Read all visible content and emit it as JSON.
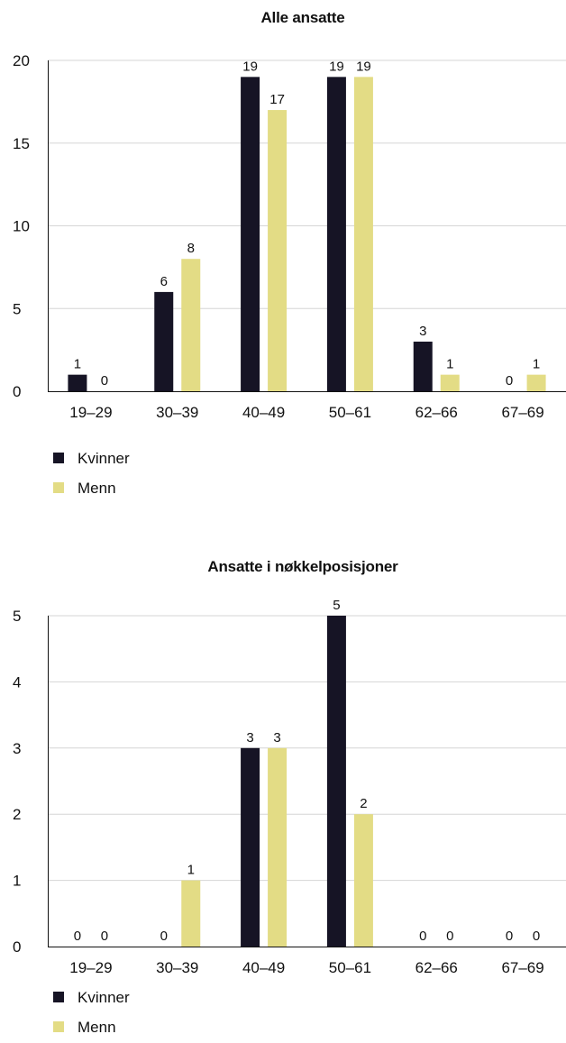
{
  "chart_data": [
    {
      "type": "bar",
      "title": "Alle ansatte",
      "xlabel": "",
      "ylabel": "",
      "categories": [
        "19–29",
        "30–39",
        "40–49",
        "50–61",
        "62–66",
        "67–69"
      ],
      "ylim": [
        0,
        20
      ],
      "yticks": [
        0,
        5,
        10,
        15,
        20
      ],
      "grid": true,
      "legend_position": "bottom-left",
      "series": [
        {
          "name": "Kvinner",
          "color": "#161425",
          "values": [
            1,
            6,
            19,
            19,
            3,
            0
          ]
        },
        {
          "name": "Menn",
          "color": "#e3dc85",
          "values": [
            0,
            8,
            17,
            19,
            1,
            1
          ]
        }
      ]
    },
    {
      "type": "bar",
      "title": "Ansatte i nøkkelposisjoner",
      "xlabel": "",
      "ylabel": "",
      "categories": [
        "19–29",
        "30–39",
        "40–49",
        "50–61",
        "62–66",
        "67–69"
      ],
      "ylim": [
        0,
        5
      ],
      "yticks": [
        0,
        1,
        2,
        3,
        4,
        5
      ],
      "grid": true,
      "legend_position": "bottom-left",
      "series": [
        {
          "name": "Kvinner",
          "color": "#161425",
          "values": [
            0,
            0,
            3,
            5,
            0,
            0
          ]
        },
        {
          "name": "Menn",
          "color": "#e3dc85",
          "values": [
            0,
            1,
            3,
            2,
            0,
            0
          ]
        }
      ]
    }
  ]
}
